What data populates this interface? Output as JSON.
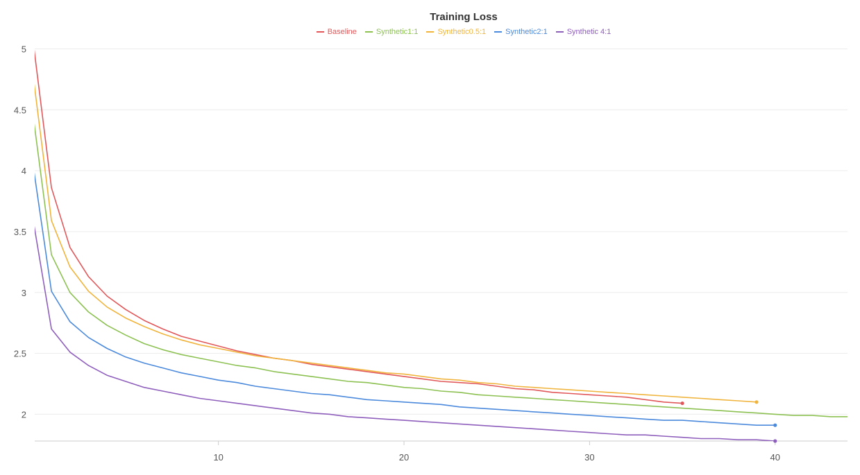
{
  "chart_data": {
    "type": "line",
    "title": "Training Loss",
    "xlabel": "",
    "ylabel": "",
    "xlim": [
      0.1,
      43.9
    ],
    "ylim": [
      1.78,
      5.06
    ],
    "grid": true,
    "legend_position": "top-center",
    "xticks": [
      10,
      20,
      30,
      40
    ],
    "yticks": [
      2,
      2.5,
      3,
      3.5,
      4,
      4.5,
      5
    ],
    "series": [
      {
        "name": "Baseline",
        "color": "#e15759",
        "x": [
          0,
          1,
          2,
          3,
          4,
          5,
          6,
          7,
          8,
          9,
          10,
          11,
          12,
          13,
          14,
          15,
          16,
          17,
          18,
          19,
          20,
          21,
          22,
          23,
          24,
          25,
          26,
          27,
          28,
          29,
          30,
          31,
          32,
          33,
          34,
          35
        ],
        "y": [
          5.08,
          3.86,
          3.37,
          3.13,
          2.97,
          2.86,
          2.77,
          2.7,
          2.64,
          2.6,
          2.56,
          2.52,
          2.49,
          2.46,
          2.44,
          2.41,
          2.39,
          2.37,
          2.35,
          2.33,
          2.31,
          2.29,
          2.27,
          2.26,
          2.25,
          2.23,
          2.21,
          2.2,
          2.18,
          2.17,
          2.16,
          2.15,
          2.14,
          2.12,
          2.1,
          2.09
        ]
      },
      {
        "name": "Synthetic1:1",
        "color": "#8cc152",
        "x": [
          0,
          1,
          2,
          3,
          4,
          5,
          6,
          7,
          8,
          9,
          10,
          11,
          12,
          13,
          14,
          15,
          16,
          17,
          18,
          19,
          20,
          21,
          22,
          23,
          24,
          25,
          26,
          27,
          28,
          29,
          30,
          31,
          32,
          33,
          34,
          35,
          36,
          37,
          38,
          39,
          40,
          41,
          42,
          43,
          44
        ],
        "y": [
          4.47,
          3.31,
          3.0,
          2.84,
          2.73,
          2.65,
          2.58,
          2.53,
          2.49,
          2.46,
          2.43,
          2.4,
          2.38,
          2.35,
          2.33,
          2.31,
          2.29,
          2.27,
          2.26,
          2.24,
          2.22,
          2.21,
          2.19,
          2.18,
          2.16,
          2.15,
          2.14,
          2.13,
          2.12,
          2.11,
          2.1,
          2.09,
          2.08,
          2.07,
          2.06,
          2.05,
          2.04,
          2.03,
          2.02,
          2.01,
          2.0,
          1.99,
          1.99,
          1.98,
          1.98
        ]
      },
      {
        "name": "Synthetic0.5:1",
        "color": "#f0b43c",
        "x": [
          0,
          1,
          2,
          3,
          4,
          5,
          6,
          7,
          8,
          9,
          10,
          11,
          12,
          13,
          14,
          15,
          16,
          17,
          18,
          19,
          20,
          21,
          22,
          23,
          24,
          25,
          26,
          27,
          28,
          29,
          30,
          31,
          32,
          33,
          34,
          35,
          36,
          37,
          38,
          39
        ],
        "y": [
          4.8,
          3.59,
          3.21,
          3.01,
          2.88,
          2.79,
          2.72,
          2.66,
          2.61,
          2.57,
          2.54,
          2.51,
          2.48,
          2.46,
          2.44,
          2.42,
          2.4,
          2.38,
          2.36,
          2.34,
          2.33,
          2.31,
          2.29,
          2.28,
          2.26,
          2.25,
          2.23,
          2.22,
          2.21,
          2.2,
          2.19,
          2.18,
          2.17,
          2.16,
          2.15,
          2.14,
          2.13,
          2.12,
          2.11,
          2.1
        ]
      },
      {
        "name": "Synthetic2:1",
        "color": "#4a89dc",
        "x": [
          0,
          1,
          2,
          3,
          4,
          5,
          6,
          7,
          8,
          9,
          10,
          11,
          12,
          13,
          14,
          15,
          16,
          17,
          18,
          19,
          20,
          21,
          22,
          23,
          24,
          25,
          26,
          27,
          28,
          29,
          30,
          31,
          32,
          33,
          34,
          35,
          36,
          37,
          38,
          39,
          40
        ],
        "y": [
          4.06,
          3.01,
          2.76,
          2.63,
          2.54,
          2.47,
          2.42,
          2.38,
          2.34,
          2.31,
          2.28,
          2.26,
          2.23,
          2.21,
          2.19,
          2.17,
          2.16,
          2.14,
          2.12,
          2.11,
          2.1,
          2.09,
          2.08,
          2.06,
          2.05,
          2.04,
          2.03,
          2.02,
          2.01,
          2.0,
          1.99,
          1.98,
          1.97,
          1.96,
          1.95,
          1.95,
          1.94,
          1.93,
          1.92,
          1.91,
          1.91
        ]
      },
      {
        "name": "Synthetic 4:1",
        "color": "#8e5ebc",
        "x": [
          0,
          1,
          2,
          3,
          4,
          5,
          6,
          7,
          8,
          9,
          10,
          11,
          12,
          13,
          14,
          15,
          16,
          17,
          18,
          19,
          20,
          21,
          22,
          23,
          24,
          25,
          26,
          27,
          28,
          29,
          30,
          31,
          32,
          33,
          34,
          35,
          36,
          37,
          38,
          39,
          40
        ],
        "y": [
          3.61,
          2.7,
          2.51,
          2.4,
          2.32,
          2.27,
          2.22,
          2.19,
          2.16,
          2.13,
          2.11,
          2.09,
          2.07,
          2.05,
          2.03,
          2.01,
          2.0,
          1.98,
          1.97,
          1.96,
          1.95,
          1.94,
          1.93,
          1.92,
          1.91,
          1.9,
          1.89,
          1.88,
          1.87,
          1.86,
          1.85,
          1.84,
          1.83,
          1.83,
          1.82,
          1.81,
          1.8,
          1.8,
          1.79,
          1.79,
          1.78
        ]
      }
    ]
  }
}
